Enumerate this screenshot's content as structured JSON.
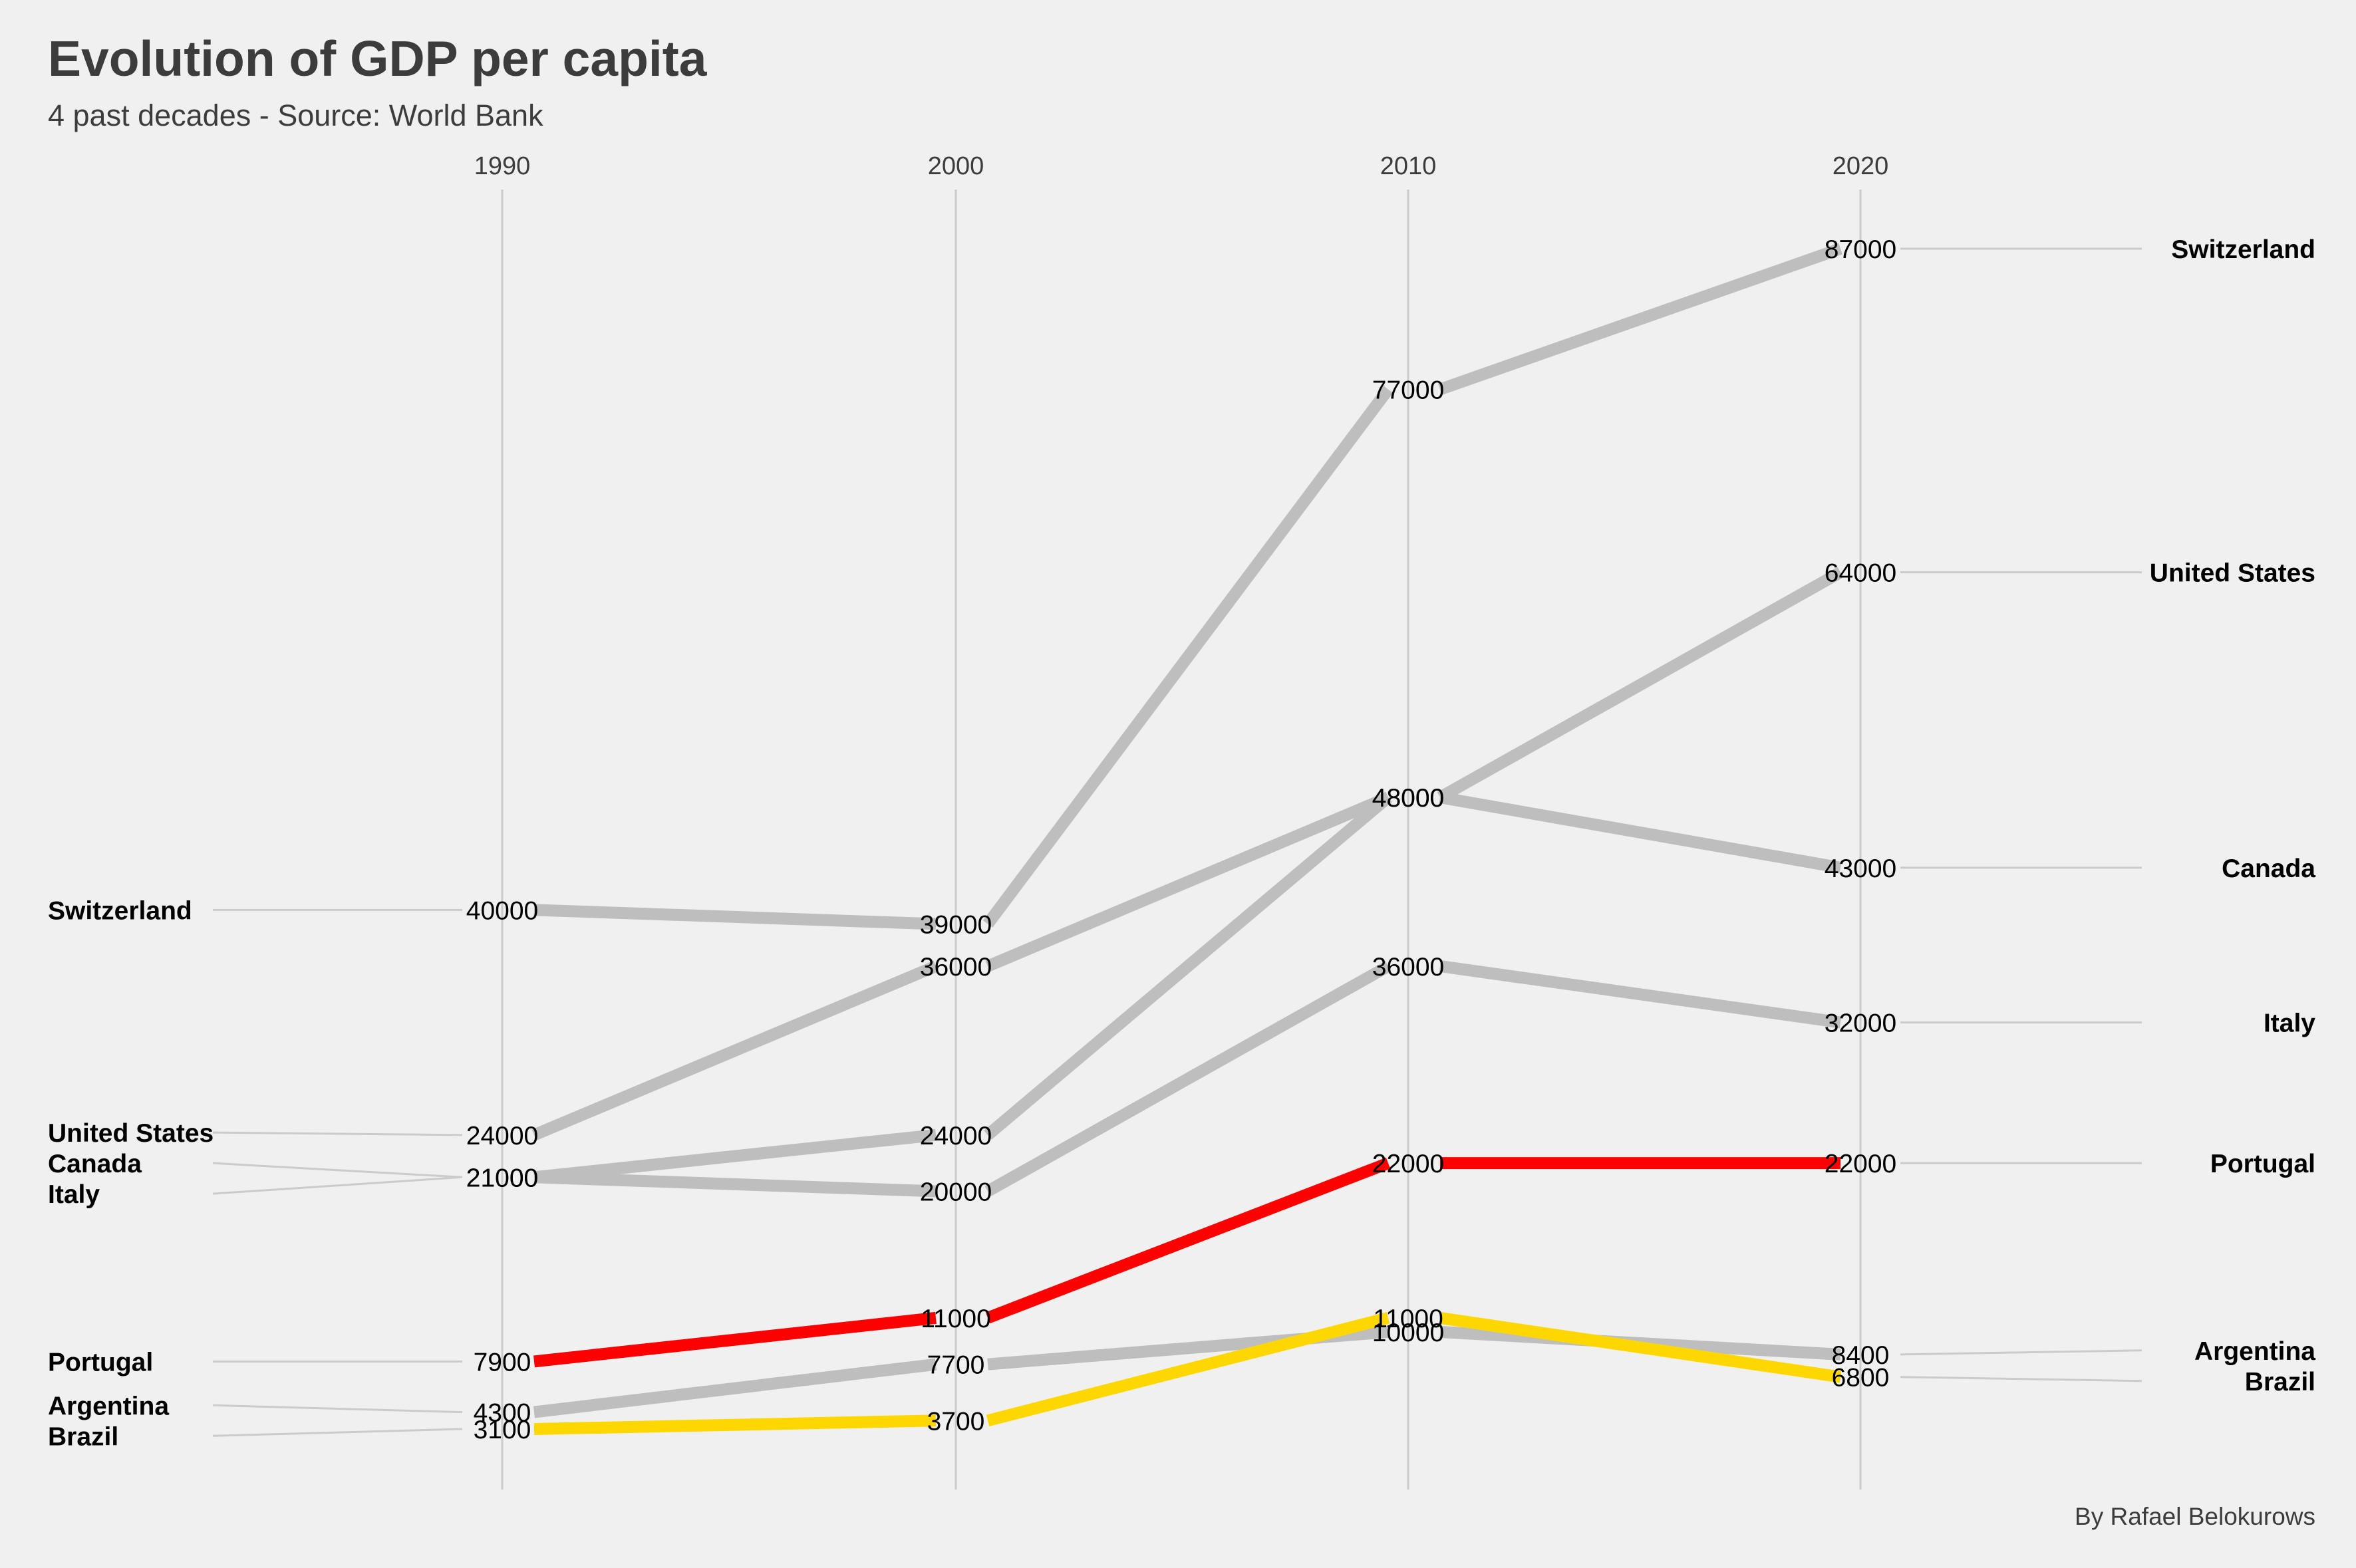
{
  "title": "Evolution of GDP per capita",
  "subtitle": "4 past decades - Source: World Bank",
  "caption": "By Rafael Belokurows",
  "colors": {
    "background": "#f0f0f0",
    "default_line": "#bebebe",
    "highlight_portugal": "#ff0000",
    "highlight_brazil": "#ffd700",
    "axis_line": "#cbcbcb",
    "text": "#3c3c3c",
    "label": "#000000"
  },
  "chart_data": {
    "type": "line",
    "title": "Evolution of GDP per capita",
    "subtitle": "4 past decades - Source: World Bank",
    "x": [
      1990,
      2000,
      2010,
      2020
    ],
    "x_tick_labels": [
      "1990",
      "2000",
      "2010",
      "2020"
    ],
    "grid": "vertical lines at each year",
    "series": [
      {
        "name": "Switzerland",
        "values": [
          40000,
          39000,
          77000,
          87000
        ],
        "color": "#bebebe"
      },
      {
        "name": "United States",
        "values": [
          24000,
          36000,
          48000,
          64000
        ],
        "color": "#bebebe"
      },
      {
        "name": "Canada",
        "values": [
          21000,
          24000,
          48000,
          43000
        ],
        "color": "#bebebe"
      },
      {
        "name": "Italy",
        "values": [
          21000,
          20000,
          36000,
          32000
        ],
        "color": "#bebebe"
      },
      {
        "name": "Argentina",
        "values": [
          4300,
          7700,
          10000,
          8400
        ],
        "color": "#bebebe"
      },
      {
        "name": "Portugal",
        "values": [
          7900,
          11000,
          22000,
          22000
        ],
        "color": "#ff0000"
      },
      {
        "name": "Brazil",
        "values": [
          3100,
          3700,
          11000,
          6800
        ],
        "color": "#ffd700"
      }
    ]
  }
}
